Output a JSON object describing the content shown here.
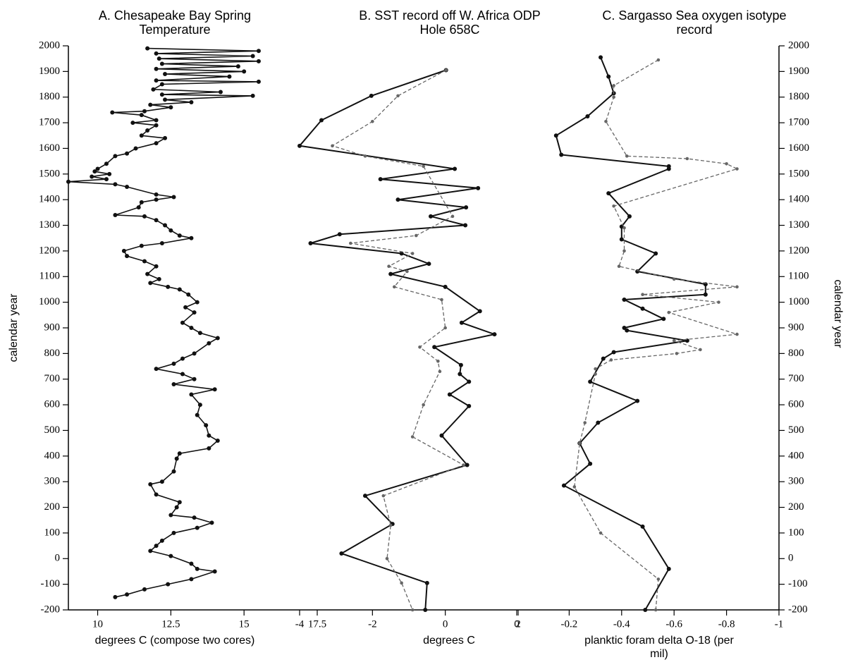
{
  "chart_data": [
    {
      "type": "line",
      "title": "A. Chesapeake Bay Spring Temperature",
      "xlabel": "degrees C (compose two cores)",
      "ylabel": "calendar year",
      "xlim": [
        9,
        17.5
      ],
      "xticks": [
        10,
        12.5,
        15,
        17.5
      ],
      "ylim": [
        -200,
        2000
      ],
      "yticks": [
        -200,
        -100,
        0,
        100,
        200,
        300,
        400,
        500,
        600,
        700,
        800,
        900,
        1000,
        1100,
        1200,
        1300,
        1400,
        1500,
        1600,
        1700,
        1800,
        1900,
        2000
      ],
      "series": [
        {
          "color": "#111111",
          "style": "solid",
          "years": [
            1990,
            1980,
            1970,
            1960,
            1950,
            1940,
            1930,
            1920,
            1910,
            1900,
            1890,
            1880,
            1865,
            1860,
            1850,
            1830,
            1820,
            1810,
            1805,
            1790,
            1780,
            1770,
            1760,
            1745,
            1740,
            1730,
            1710,
            1700,
            1690,
            1670,
            1650,
            1640,
            1620,
            1600,
            1580,
            1570,
            1540,
            1520,
            1510,
            1500,
            1490,
            1480,
            1470,
            1460,
            1450,
            1420,
            1410,
            1400,
            1390,
            1370,
            1340,
            1335,
            1320,
            1300,
            1280,
            1260,
            1250,
            1230,
            1220,
            1200,
            1180,
            1160,
            1140,
            1110,
            1090,
            1075,
            1060,
            1050,
            1030,
            1000,
            980,
            960,
            920,
            900,
            880,
            860,
            840,
            800,
            780,
            760,
            740,
            720,
            700,
            680,
            660,
            640,
            600,
            560,
            520,
            480,
            460,
            430,
            410,
            390,
            340,
            300,
            290,
            250,
            220,
            200,
            170,
            160,
            140,
            120,
            100,
            70,
            50,
            30,
            10,
            -20,
            -40,
            -50,
            -80,
            -100,
            -120,
            -140,
            -150
          ],
          "values": [
            11.7,
            15.5,
            12,
            15.3,
            12.1,
            15.5,
            12.2,
            14.8,
            12,
            15,
            12.3,
            14.5,
            12,
            15.5,
            12.2,
            11.9,
            14.2,
            12.2,
            15.3,
            12.3,
            13.2,
            11.8,
            12.5,
            11.6,
            10.5,
            11.5,
            12,
            11.2,
            12,
            11.7,
            11.5,
            12.3,
            12,
            11.3,
            11,
            10.6,
            10.3,
            10,
            9.9,
            10.4,
            9.8,
            10.3,
            9,
            10.6,
            11,
            12,
            12.6,
            12,
            11.5,
            11.4,
            10.6,
            11.6,
            12,
            12.3,
            12.5,
            12.8,
            13.2,
            12.2,
            11.5,
            10.9,
            11,
            11.6,
            12,
            11.7,
            12.1,
            11.8,
            12.4,
            12.8,
            13.1,
            13.4,
            13,
            13.3,
            12.9,
            13.2,
            13.5,
            14.1,
            13.8,
            13.3,
            12.9,
            12.6,
            12,
            12.9,
            13.3,
            12.6,
            14,
            13.2,
            13.5,
            13.4,
            13.7,
            13.8,
            14.1,
            13.8,
            12.8,
            12.7,
            12.6,
            12.2,
            11.8,
            12,
            12.8,
            12.7,
            12.5,
            13.3,
            13.9,
            13.4,
            12.6,
            12.2,
            12,
            11.8,
            12.5,
            13.2,
            13.4,
            14,
            13.2,
            12.4,
            11.6,
            11,
            10.6
          ]
        }
      ]
    },
    {
      "type": "line",
      "title": "B. SST record off W. Africa ODP Hole 658C",
      "xlabel": "degrees C",
      "xlim": [
        -4,
        2
      ],
      "xticks": [
        -4,
        -2,
        0,
        2
      ],
      "series": [
        {
          "color": "#111111",
          "style": "solid",
          "years": [
            1905,
            1805,
            1710,
            1610,
            1520,
            1480,
            1445,
            1400,
            1370,
            1335,
            1300,
            1265,
            1230,
            1190,
            1150,
            1110,
            1060,
            965,
            920,
            875,
            825,
            755,
            720,
            690,
            640,
            595,
            480,
            365,
            245,
            135,
            20,
            -95,
            -200
          ],
          "values": [
            0.02,
            -2.03,
            -3.4,
            -4,
            0.26,
            -1.78,
            0.9,
            -1.3,
            0.57,
            -0.4,
            0.55,
            -2.9,
            -3.7,
            -1.2,
            -0.45,
            -1.5,
            0,
            0.95,
            0.45,
            1.35,
            -0.3,
            0.43,
            0.4,
            0.65,
            0.12,
            0.65,
            -0.1,
            0.6,
            -2.2,
            -1.45,
            -2.85,
            -0.5,
            -0.55
          ]
        },
        {
          "color": "#666666",
          "style": "dashed",
          "years": [
            1905,
            1805,
            1705,
            1610,
            1570,
            1530,
            1335,
            1260,
            1230,
            1190,
            1140,
            1120,
            1060,
            1010,
            900,
            825,
            770,
            730,
            600,
            475,
            365,
            245,
            130,
            0,
            -95,
            -200
          ],
          "values": [
            0.02,
            -1.3,
            -2,
            -3.1,
            -2.2,
            -0.6,
            0.2,
            -0.8,
            -2.6,
            -0.9,
            -1.55,
            -1.05,
            -1.4,
            -0.1,
            0,
            -0.7,
            -0.2,
            -0.15,
            -0.6,
            -0.9,
            0.5,
            -1.7,
            -1.5,
            -1.6,
            -1.2,
            -0.9
          ]
        }
      ]
    },
    {
      "type": "line",
      "title": "C. Sargasso Sea oxygen isotype record",
      "xlabel": "planktic foram delta O-18 (per mil)",
      "ylabel": "calendar year",
      "xlim": [
        0,
        -1
      ],
      "xticks": [
        0,
        -0.2,
        -0.4,
        -0.6,
        -0.8,
        -1
      ],
      "ylim": [
        -200,
        2000
      ],
      "yticks": [
        -200,
        -100,
        0,
        100,
        200,
        300,
        400,
        500,
        600,
        700,
        800,
        900,
        1000,
        1100,
        1200,
        1300,
        1400,
        1500,
        1600,
        1700,
        1800,
        1900,
        2000
      ],
      "series": [
        {
          "color": "#111111",
          "style": "solid",
          "years": [
            1955,
            1880,
            1815,
            1725,
            1650,
            1575,
            1530,
            1520,
            1425,
            1335,
            1295,
            1245,
            1190,
            1120,
            1070,
            1030,
            1010,
            975,
            935,
            900,
            890,
            850,
            805,
            780,
            690,
            615,
            530,
            450,
            370,
            285,
            125,
            -40,
            -200
          ],
          "values": [
            -0.32,
            -0.35,
            -0.37,
            -0.27,
            -0.15,
            -0.17,
            -0.58,
            -0.58,
            -0.35,
            -0.43,
            -0.4,
            -0.4,
            -0.53,
            -0.46,
            -0.72,
            -0.72,
            -0.41,
            -0.48,
            -0.56,
            -0.41,
            -0.42,
            -0.65,
            -0.37,
            -0.33,
            -0.28,
            -0.46,
            -0.31,
            -0.24,
            -0.28,
            -0.18,
            -0.48,
            -0.58,
            -0.49
          ]
        },
        {
          "color": "#666666",
          "style": "dashed",
          "years": [
            1945,
            1845,
            1800,
            1705,
            1570,
            1560,
            1540,
            1520,
            1375,
            1290,
            1200,
            1140,
            1090,
            1060,
            1030,
            1000,
            960,
            875,
            850,
            815,
            800,
            775,
            740,
            720,
            530,
            450,
            280,
            100,
            -80,
            -200
          ],
          "values": [
            -0.54,
            -0.37,
            -0.37,
            -0.34,
            -0.42,
            -0.65,
            -0.8,
            -0.84,
            -0.37,
            -0.41,
            -0.41,
            -0.39,
            -0.6,
            -0.84,
            -0.48,
            -0.77,
            -0.58,
            -0.84,
            -0.6,
            -0.7,
            -0.61,
            -0.36,
            -0.3,
            -0.3,
            -0.26,
            -0.24,
            -0.22,
            -0.32,
            -0.54,
            -0.53
          ]
        }
      ]
    }
  ]
}
